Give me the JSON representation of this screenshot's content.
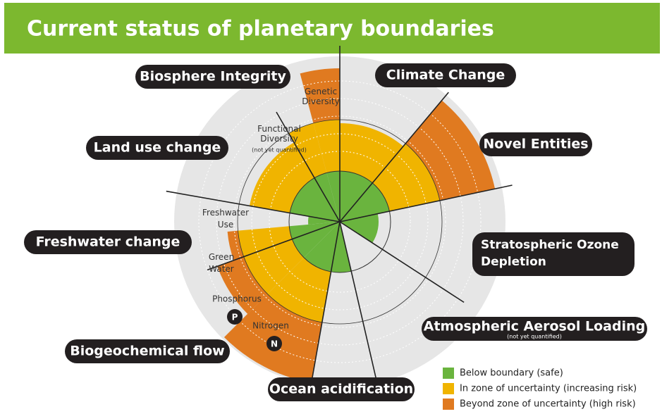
{
  "header": {
    "title": "Current status of planetary boundaries"
  },
  "boundaries": [
    {
      "label": "Biosphere Integrity"
    },
    {
      "label": "Climate Change"
    },
    {
      "label": "Land use change"
    },
    {
      "label": "Novel Entities"
    },
    {
      "label": "Freshwater change"
    },
    {
      "label": "Stratospheric Ozone Depletion"
    },
    {
      "label": "Atmospheric Aerosol Loading",
      "note": "(not yet quantified)"
    },
    {
      "label": "Biogeochemical flow"
    },
    {
      "label": "Ocean acidification"
    }
  ],
  "sublabels": [
    "Genetic Diversity",
    "Functional Diversity",
    "(not yet quantified)",
    "Freshwater Use",
    "Green Water",
    "Phosphorus",
    "Nitrogen",
    "P",
    "N"
  ],
  "legend": [
    {
      "label": "Below boundary (safe)",
      "color": "#6ab43e"
    },
    {
      "label": "In zone of uncertainty (increasing risk)",
      "color": "#f0b400"
    },
    {
      "label": "Beyond zone of uncertainty (high risk)",
      "color": "#e07a20"
    }
  ]
}
